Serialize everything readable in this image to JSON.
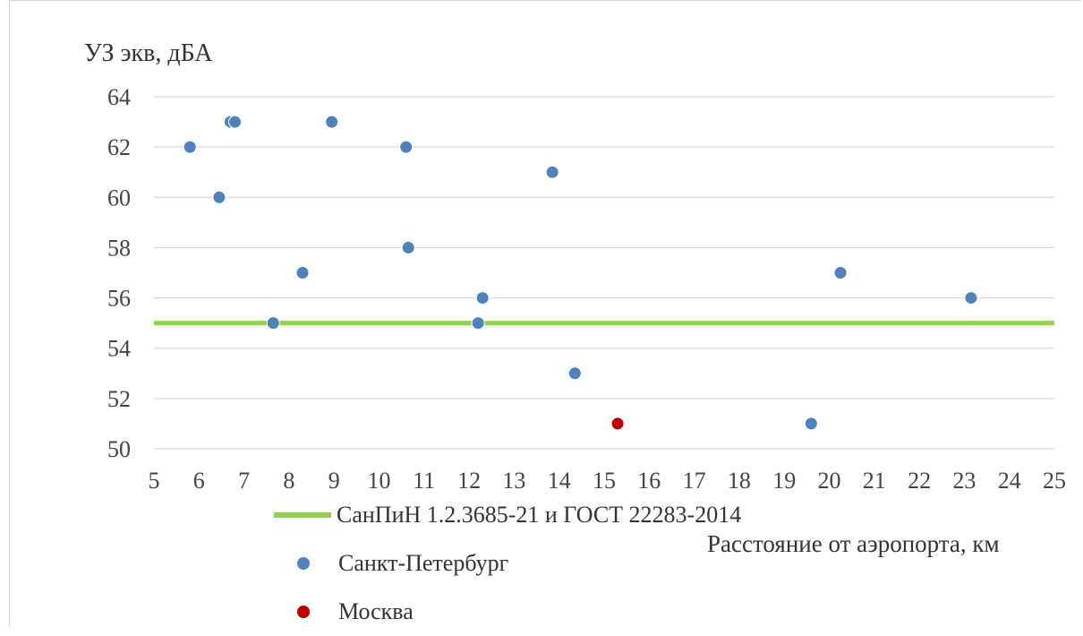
{
  "chart_data": {
    "type": "scatter",
    "ylabel": "УЗ экв, дБА",
    "xlabel": "Расстояние от аэропорта, км",
    "xlim": [
      5,
      25
    ],
    "ylim": [
      50,
      64
    ],
    "xticks": [
      5,
      6,
      7,
      8,
      9,
      10,
      11,
      12,
      13,
      14,
      15,
      16,
      17,
      18,
      19,
      20,
      21,
      22,
      23,
      24,
      25
    ],
    "yticks": [
      50,
      52,
      54,
      56,
      58,
      60,
      62,
      64
    ],
    "grid": "horizontal",
    "legend_position": "bottom-left",
    "reference_line": {
      "name": "СанПиН 1.2.3685-21 и ГОСТ 22283-2014",
      "y": 55,
      "color": "#92d050"
    },
    "series": [
      {
        "name": "Санкт-Петербург",
        "color": "#4f81bd",
        "points": [
          {
            "x": 5.8,
            "y": 62
          },
          {
            "x": 6.45,
            "y": 60
          },
          {
            "x": 6.7,
            "y": 63
          },
          {
            "x": 6.8,
            "y": 63
          },
          {
            "x": 7.65,
            "y": 55
          },
          {
            "x": 8.3,
            "y": 57
          },
          {
            "x": 8.95,
            "y": 63
          },
          {
            "x": 10.6,
            "y": 62
          },
          {
            "x": 10.65,
            "y": 58
          },
          {
            "x": 12.2,
            "y": 55
          },
          {
            "x": 12.3,
            "y": 56
          },
          {
            "x": 13.85,
            "y": 61
          },
          {
            "x": 14.35,
            "y": 53
          },
          {
            "x": 19.6,
            "y": 51
          },
          {
            "x": 20.25,
            "y": 57
          },
          {
            "x": 23.15,
            "y": 56
          }
        ]
      },
      {
        "name": "Москва",
        "color": "#c00000",
        "points": [
          {
            "x": 15.3,
            "y": 51
          }
        ]
      }
    ]
  }
}
